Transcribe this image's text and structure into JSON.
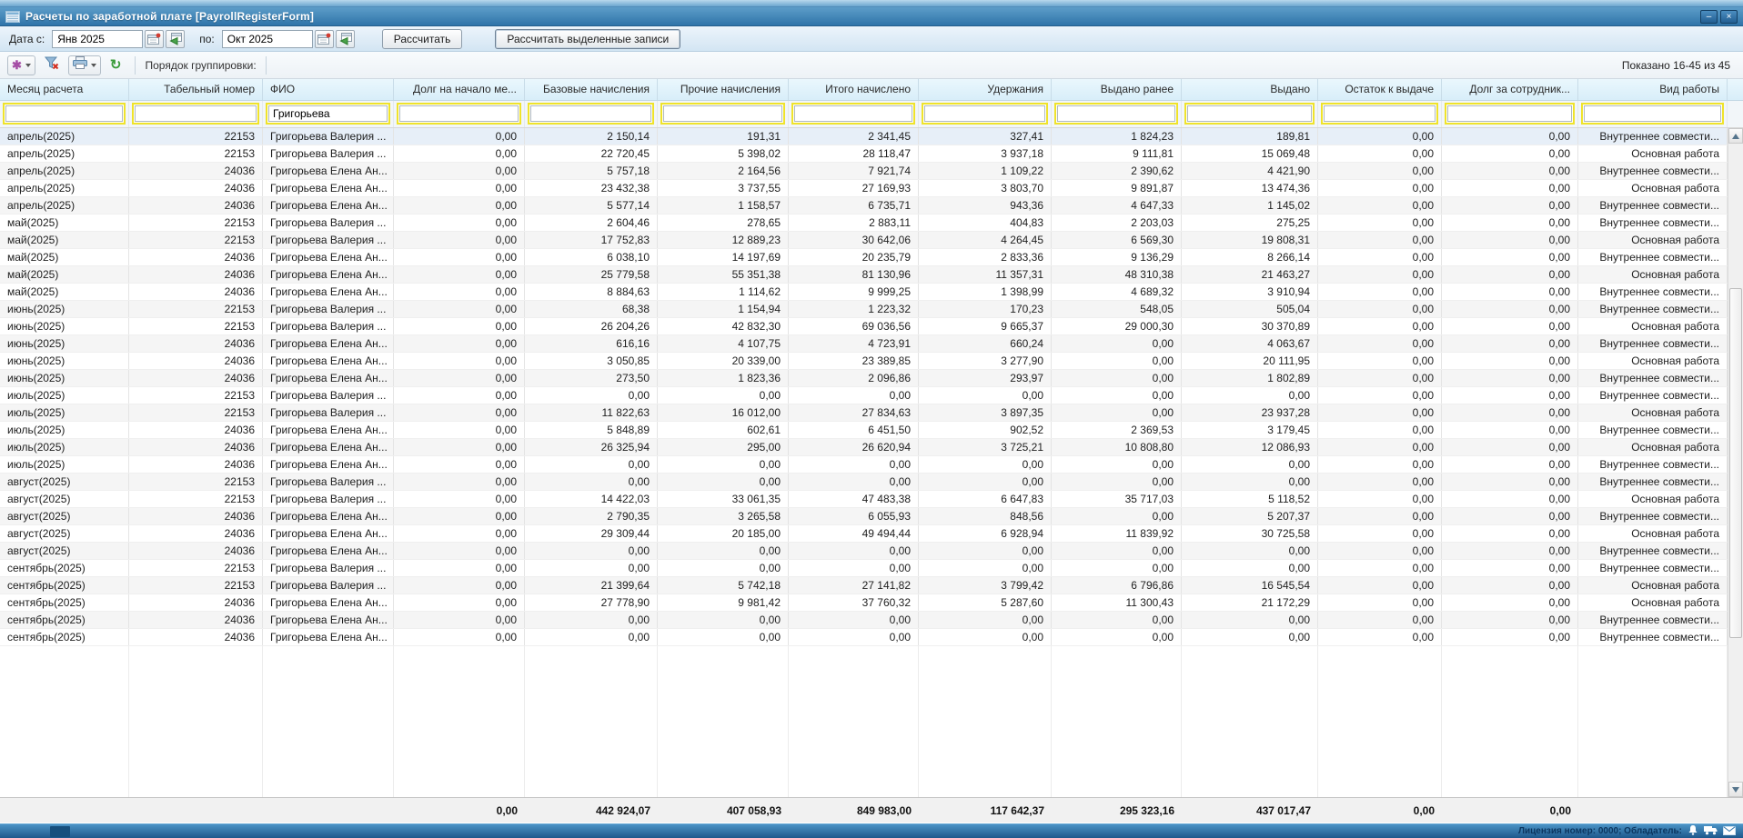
{
  "window": {
    "title": "Расчеты по заработной плате [PayrollRegisterForm]"
  },
  "toolbar": {
    "date_from_label": "Дата с:",
    "date_from_value": "Янв 2025",
    "date_to_label": "по:",
    "date_to_value": "Окт 2025",
    "calc_button": "Рассчитать",
    "calc_selected_button": "Рассчитать выделенные записи",
    "grouping_label": "Порядок группировки:",
    "shown_label": "Показано 16-45 из 45",
    "icons": [
      "settings",
      "clear-filter",
      "print",
      "refresh",
      "calendar",
      "calendar-go"
    ]
  },
  "table": {
    "columns": [
      "Месяц расчета",
      "Табельный номер",
      "ФИО",
      "Долг на начало ме...",
      "Базовые начисления",
      "Прочие начисления",
      "Итого начислено",
      "Удержания",
      "Выдано ранее",
      "Выдано",
      "Остаток к выдаче",
      "Долг за сотрудник...",
      "Вид работы"
    ],
    "filters": [
      "",
      "",
      "Григорьева",
      "",
      "",
      "",
      "",
      "",
      "",
      "",
      "",
      "",
      ""
    ],
    "rows": [
      [
        "апрель(2025)",
        "22153",
        "Григорьева Валерия ...",
        "0,00",
        "2 150,14",
        "191,31",
        "2 341,45",
        "327,41",
        "1 824,23",
        "189,81",
        "0,00",
        "0,00",
        "Внутреннее совмести..."
      ],
      [
        "апрель(2025)",
        "22153",
        "Григорьева Валерия ...",
        "0,00",
        "22 720,45",
        "5 398,02",
        "28 118,47",
        "3 937,18",
        "9 111,81",
        "15 069,48",
        "0,00",
        "0,00",
        "Основная работа"
      ],
      [
        "апрель(2025)",
        "24036",
        "Григорьева Елена Ан...",
        "0,00",
        "5 757,18",
        "2 164,56",
        "7 921,74",
        "1 109,22",
        "2 390,62",
        "4 421,90",
        "0,00",
        "0,00",
        "Внутреннее совмести..."
      ],
      [
        "апрель(2025)",
        "24036",
        "Григорьева Елена Ан...",
        "0,00",
        "23 432,38",
        "3 737,55",
        "27 169,93",
        "3 803,70",
        "9 891,87",
        "13 474,36",
        "0,00",
        "0,00",
        "Основная работа"
      ],
      [
        "апрель(2025)",
        "24036",
        "Григорьева Елена Ан...",
        "0,00",
        "5 577,14",
        "1 158,57",
        "6 735,71",
        "943,36",
        "4 647,33",
        "1 145,02",
        "0,00",
        "0,00",
        "Внутреннее совмести..."
      ],
      [
        "май(2025)",
        "22153",
        "Григорьева Валерия ...",
        "0,00",
        "2 604,46",
        "278,65",
        "2 883,11",
        "404,83",
        "2 203,03",
        "275,25",
        "0,00",
        "0,00",
        "Внутреннее совмести..."
      ],
      [
        "май(2025)",
        "22153",
        "Григорьева Валерия ...",
        "0,00",
        "17 752,83",
        "12 889,23",
        "30 642,06",
        "4 264,45",
        "6 569,30",
        "19 808,31",
        "0,00",
        "0,00",
        "Основная работа"
      ],
      [
        "май(2025)",
        "24036",
        "Григорьева Елена Ан...",
        "0,00",
        "6 038,10",
        "14 197,69",
        "20 235,79",
        "2 833,36",
        "9 136,29",
        "8 266,14",
        "0,00",
        "0,00",
        "Внутреннее совмести..."
      ],
      [
        "май(2025)",
        "24036",
        "Григорьева Елена Ан...",
        "0,00",
        "25 779,58",
        "55 351,38",
        "81 130,96",
        "11 357,31",
        "48 310,38",
        "21 463,27",
        "0,00",
        "0,00",
        "Основная работа"
      ],
      [
        "май(2025)",
        "24036",
        "Григорьева Елена Ан...",
        "0,00",
        "8 884,63",
        "1 114,62",
        "9 999,25",
        "1 398,99",
        "4 689,32",
        "3 910,94",
        "0,00",
        "0,00",
        "Внутреннее совмести..."
      ],
      [
        "июнь(2025)",
        "22153",
        "Григорьева Валерия ...",
        "0,00",
        "68,38",
        "1 154,94",
        "1 223,32",
        "170,23",
        "548,05",
        "505,04",
        "0,00",
        "0,00",
        "Внутреннее совмести..."
      ],
      [
        "июнь(2025)",
        "22153",
        "Григорьева Валерия ...",
        "0,00",
        "26 204,26",
        "42 832,30",
        "69 036,56",
        "9 665,37",
        "29 000,30",
        "30 370,89",
        "0,00",
        "0,00",
        "Основная работа"
      ],
      [
        "июнь(2025)",
        "24036",
        "Григорьева Елена Ан...",
        "0,00",
        "616,16",
        "4 107,75",
        "4 723,91",
        "660,24",
        "0,00",
        "4 063,67",
        "0,00",
        "0,00",
        "Внутреннее совмести..."
      ],
      [
        "июнь(2025)",
        "24036",
        "Григорьева Елена Ан...",
        "0,00",
        "3 050,85",
        "20 339,00",
        "23 389,85",
        "3 277,90",
        "0,00",
        "20 111,95",
        "0,00",
        "0,00",
        "Основная работа"
      ],
      [
        "июнь(2025)",
        "24036",
        "Григорьева Елена Ан...",
        "0,00",
        "273,50",
        "1 823,36",
        "2 096,86",
        "293,97",
        "0,00",
        "1 802,89",
        "0,00",
        "0,00",
        "Внутреннее совмести..."
      ],
      [
        "июль(2025)",
        "22153",
        "Григорьева Валерия ...",
        "0,00",
        "0,00",
        "0,00",
        "0,00",
        "0,00",
        "0,00",
        "0,00",
        "0,00",
        "0,00",
        "Внутреннее совмести..."
      ],
      [
        "июль(2025)",
        "22153",
        "Григорьева Валерия ...",
        "0,00",
        "11 822,63",
        "16 012,00",
        "27 834,63",
        "3 897,35",
        "0,00",
        "23 937,28",
        "0,00",
        "0,00",
        "Основная работа"
      ],
      [
        "июль(2025)",
        "24036",
        "Григорьева Елена Ан...",
        "0,00",
        "5 848,89",
        "602,61",
        "6 451,50",
        "902,52",
        "2 369,53",
        "3 179,45",
        "0,00",
        "0,00",
        "Внутреннее совмести..."
      ],
      [
        "июль(2025)",
        "24036",
        "Григорьева Елена Ан...",
        "0,00",
        "26 325,94",
        "295,00",
        "26 620,94",
        "3 725,21",
        "10 808,80",
        "12 086,93",
        "0,00",
        "0,00",
        "Основная работа"
      ],
      [
        "июль(2025)",
        "24036",
        "Григорьева Елена Ан...",
        "0,00",
        "0,00",
        "0,00",
        "0,00",
        "0,00",
        "0,00",
        "0,00",
        "0,00",
        "0,00",
        "Внутреннее совмести..."
      ],
      [
        "август(2025)",
        "22153",
        "Григорьева Валерия ...",
        "0,00",
        "0,00",
        "0,00",
        "0,00",
        "0,00",
        "0,00",
        "0,00",
        "0,00",
        "0,00",
        "Внутреннее совмести..."
      ],
      [
        "август(2025)",
        "22153",
        "Григорьева Валерия ...",
        "0,00",
        "14 422,03",
        "33 061,35",
        "47 483,38",
        "6 647,83",
        "35 717,03",
        "5 118,52",
        "0,00",
        "0,00",
        "Основная работа"
      ],
      [
        "август(2025)",
        "24036",
        "Григорьева Елена Ан...",
        "0,00",
        "2 790,35",
        "3 265,58",
        "6 055,93",
        "848,56",
        "0,00",
        "5 207,37",
        "0,00",
        "0,00",
        "Внутреннее совмести..."
      ],
      [
        "август(2025)",
        "24036",
        "Григорьева Елена Ан...",
        "0,00",
        "29 309,44",
        "20 185,00",
        "49 494,44",
        "6 928,94",
        "11 839,92",
        "30 725,58",
        "0,00",
        "0,00",
        "Основная работа"
      ],
      [
        "август(2025)",
        "24036",
        "Григорьева Елена Ан...",
        "0,00",
        "0,00",
        "0,00",
        "0,00",
        "0,00",
        "0,00",
        "0,00",
        "0,00",
        "0,00",
        "Внутреннее совмести..."
      ],
      [
        "сентябрь(2025)",
        "22153",
        "Григорьева Валерия ...",
        "0,00",
        "0,00",
        "0,00",
        "0,00",
        "0,00",
        "0,00",
        "0,00",
        "0,00",
        "0,00",
        "Внутреннее совмести..."
      ],
      [
        "сентябрь(2025)",
        "22153",
        "Григорьева Валерия ...",
        "0,00",
        "21 399,64",
        "5 742,18",
        "27 141,82",
        "3 799,42",
        "6 796,86",
        "16 545,54",
        "0,00",
        "0,00",
        "Основная работа"
      ],
      [
        "сентябрь(2025)",
        "24036",
        "Григорьева Елена Ан...",
        "0,00",
        "27 778,90",
        "9 981,42",
        "37 760,32",
        "5 287,60",
        "11 300,43",
        "21 172,29",
        "0,00",
        "0,00",
        "Основная работа"
      ],
      [
        "сентябрь(2025)",
        "24036",
        "Григорьева Елена Ан...",
        "0,00",
        "0,00",
        "0,00",
        "0,00",
        "0,00",
        "0,00",
        "0,00",
        "0,00",
        "0,00",
        "Внутреннее совмести..."
      ],
      [
        "сентябрь(2025)",
        "24036",
        "Григорьева Елена Ан...",
        "0,00",
        "0,00",
        "0,00",
        "0,00",
        "0,00",
        "0,00",
        "0,00",
        "0,00",
        "0,00",
        "Внутреннее совмести..."
      ]
    ],
    "totals": [
      "",
      "",
      "",
      "0,00",
      "442 924,07",
      "407 058,93",
      "849 983,00",
      "117 642,37",
      "295 323,16",
      "437 017,47",
      "0,00",
      "0,00",
      ""
    ]
  },
  "statusbar": {
    "license": "Лицензия номер: 0000; Обладатель:",
    "icons": [
      "bell",
      "truck",
      "envelope"
    ]
  }
}
